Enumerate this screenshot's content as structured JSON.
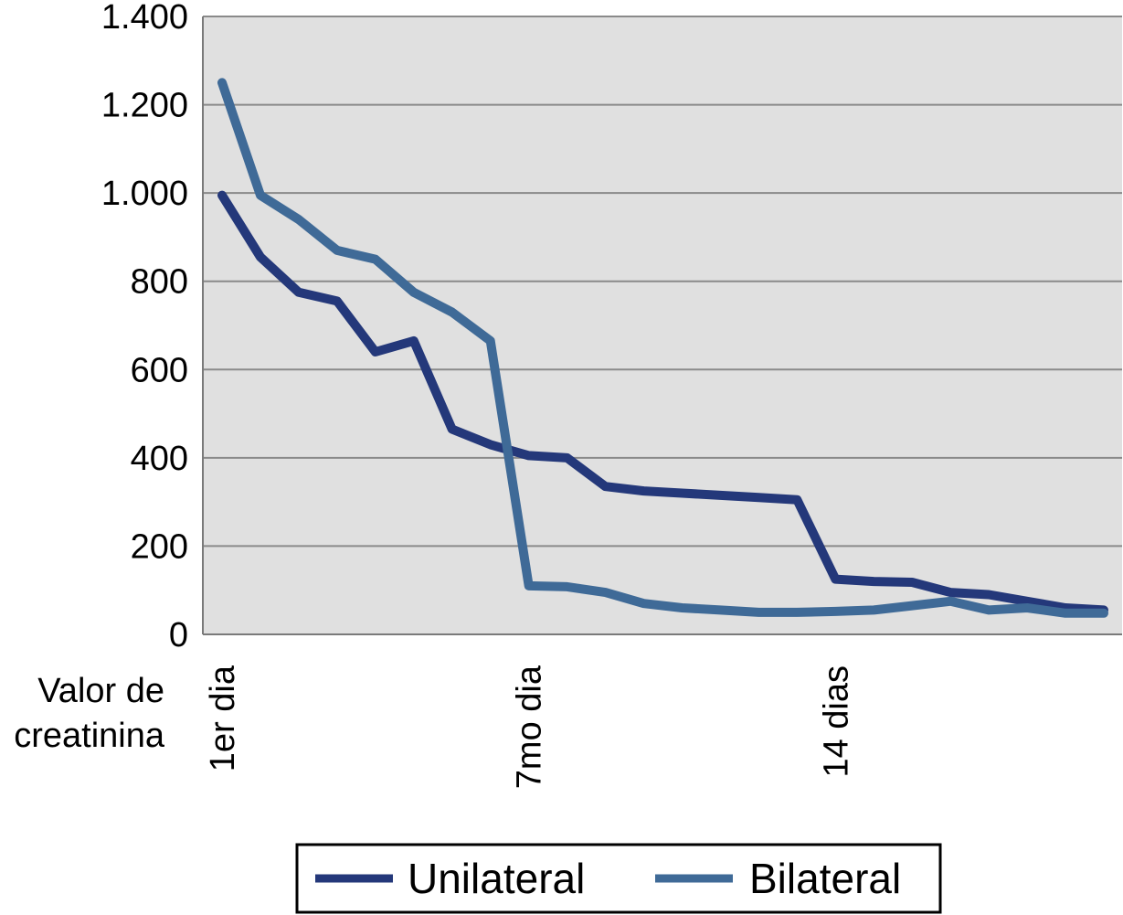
{
  "chart_data": {
    "type": "line",
    "title": "",
    "xlabel": "",
    "ylabel": "Valor de creatinina",
    "ylabel_lines": [
      "Valor de",
      "creatinina"
    ],
    "ylim": [
      0,
      1400
    ],
    "yticks": [
      0,
      200,
      400,
      600,
      800,
      1000,
      1200,
      1400
    ],
    "ytick_labels": [
      "0",
      "200",
      "400",
      "600",
      "800",
      "1.000",
      "1.200",
      "1.400"
    ],
    "n_points": 24,
    "x_tick_labels": [
      {
        "index": 0,
        "label": "1er dia"
      },
      {
        "index": 8,
        "label": "7mo dia"
      },
      {
        "index": 16,
        "label": "14 dias"
      }
    ],
    "grid": true,
    "legend_position": "bottom",
    "series": [
      {
        "name": "Unilateral",
        "color": "#24387a",
        "values": [
          995,
          855,
          775,
          755,
          640,
          665,
          465,
          430,
          405,
          400,
          335,
          325,
          320,
          315,
          310,
          305,
          125,
          120,
          118,
          95,
          90,
          75,
          60,
          55
        ]
      },
      {
        "name": "Bilateral",
        "color": "#3f6a97",
        "values": [
          1250,
          995,
          940,
          870,
          850,
          775,
          730,
          665,
          110,
          108,
          95,
          70,
          60,
          55,
          50,
          50,
          52,
          55,
          65,
          75,
          55,
          60,
          48,
          48
        ]
      }
    ]
  }
}
